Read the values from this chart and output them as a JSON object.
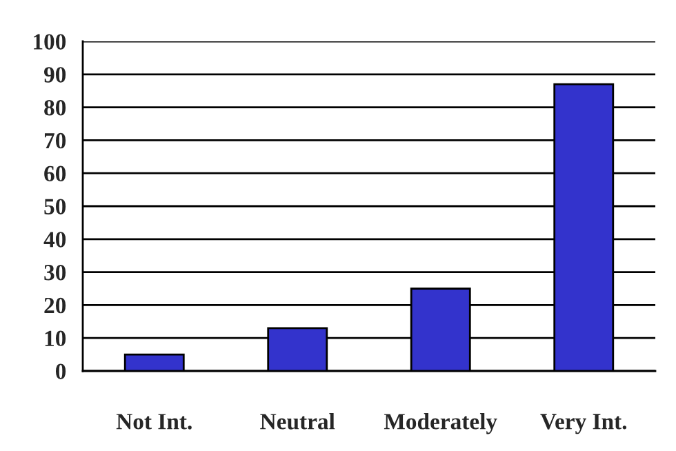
{
  "chart_data": {
    "type": "bar",
    "categories": [
      "Not Int.",
      "Neutral",
      "Moderately",
      "Very Int."
    ],
    "values": [
      5,
      13,
      25,
      87
    ],
    "color": "#3333cc",
    "ylim": [
      0,
      100
    ],
    "yticks": [
      0,
      10,
      20,
      30,
      40,
      50,
      60,
      70,
      80,
      90,
      100
    ],
    "grid": "y",
    "legend": false
  }
}
